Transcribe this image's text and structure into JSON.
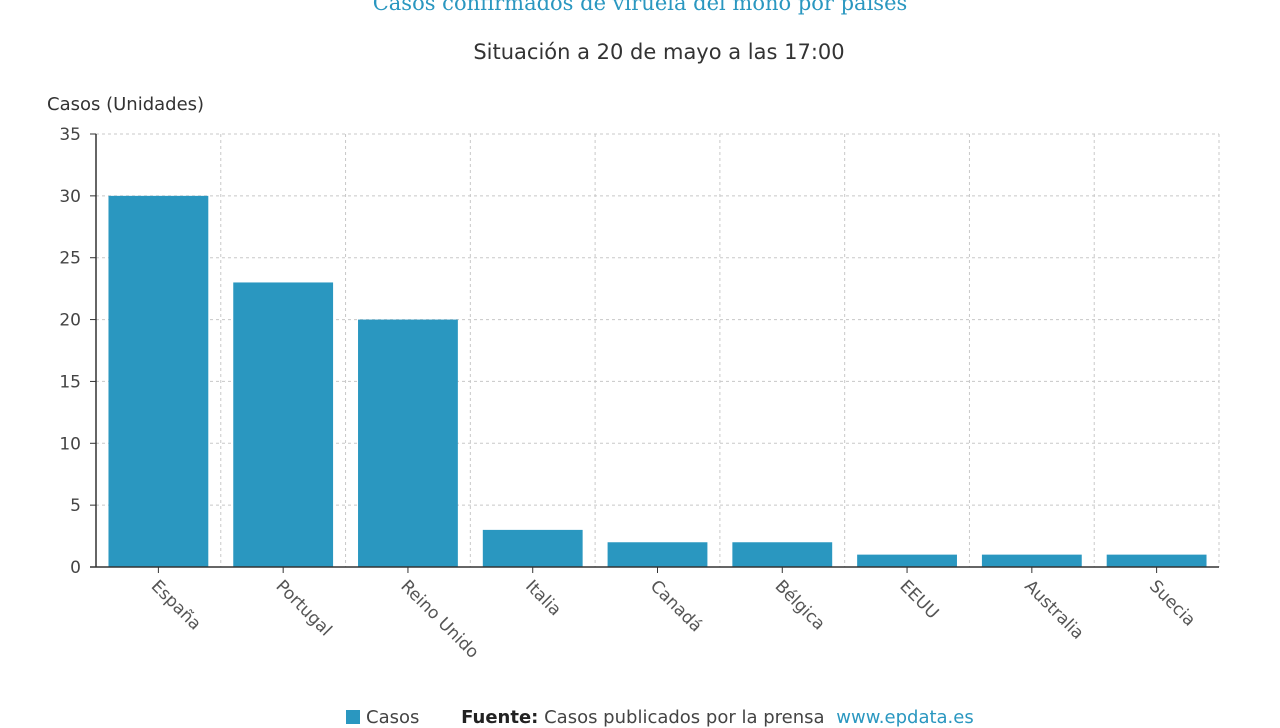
{
  "chart_data": {
    "type": "bar",
    "title": "Casos confirmados de viruela del mono por países",
    "subtitle": "Situación a 20 de mayo a las 17:00",
    "ylabel": "Casos (Unidades)",
    "xlabel": "",
    "categories": [
      "España",
      "Portugal",
      "Reino Unido",
      "Italia",
      "Canadá",
      "Bélgica",
      "EEUU",
      "Australia",
      "Suecia"
    ],
    "series": [
      {
        "name": "Casos",
        "values": [
          30,
          23,
          20,
          3,
          2,
          2,
          1,
          1,
          1
        ],
        "color": "#2a97c0"
      }
    ],
    "ylim": [
      0,
      35
    ],
    "yticks": [
      0,
      5,
      10,
      15,
      20,
      25,
      30,
      35
    ],
    "grid": true,
    "legend": "bottom"
  },
  "source": {
    "label": "Fuente:",
    "text": "Casos publicados por la prensa",
    "link": "www.epdata.es"
  }
}
